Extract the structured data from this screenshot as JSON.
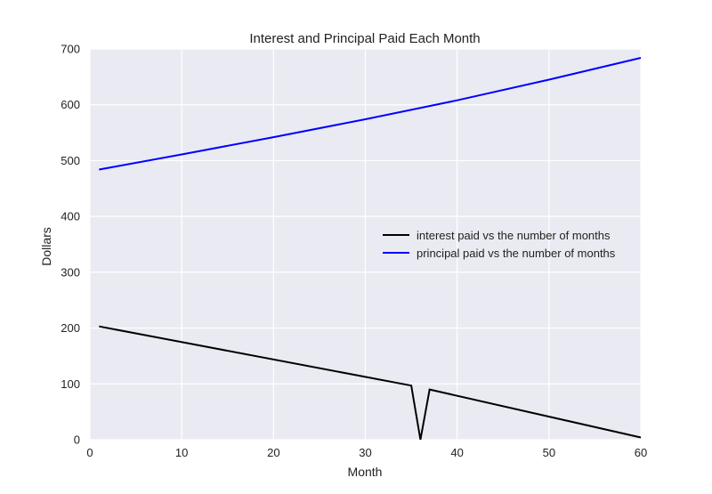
{
  "chart_data": {
    "type": "line",
    "title": "Interest and Principal Paid Each Month",
    "xlabel": "Month",
    "ylabel": "Dollars",
    "xlim": [
      0,
      60
    ],
    "ylim": [
      0,
      700
    ],
    "xticks": [
      "0",
      "10",
      "20",
      "30",
      "40",
      "50",
      "60"
    ],
    "yticks": [
      "0",
      "100",
      "200",
      "300",
      "400",
      "500",
      "600",
      "700"
    ],
    "grid": true,
    "background": "#EAEAF2",
    "legend_position": "center-right",
    "series": [
      {
        "name": "interest paid vs the number of months",
        "color": "#000000",
        "points": [
          [
            1,
            203
          ],
          [
            35,
            97
          ],
          [
            36,
            0
          ],
          [
            37,
            90
          ],
          [
            60,
            4
          ]
        ]
      },
      {
        "name": "principal paid vs the number of months",
        "color": "#0000FF",
        "points": [
          [
            1,
            484
          ],
          [
            10,
            511
          ],
          [
            20,
            542
          ],
          [
            30,
            574
          ],
          [
            40,
            608
          ],
          [
            50,
            645
          ],
          [
            60,
            684
          ]
        ]
      }
    ]
  }
}
